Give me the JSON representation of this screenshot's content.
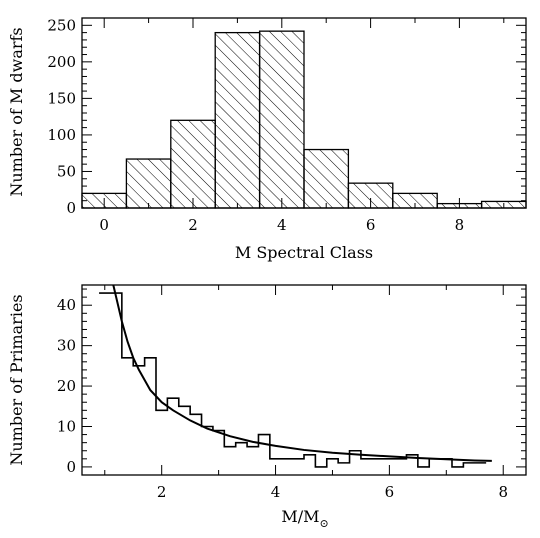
{
  "chart_data": [
    {
      "type": "bar",
      "style": "hatched histogram",
      "xlabel": "M Spectral Class",
      "ylabel": "Number of M dwarfs",
      "xlim": [
        -0.5,
        9.5
      ],
      "ylim": [
        0,
        260
      ],
      "xticks": [
        0,
        2,
        4,
        6,
        8
      ],
      "yticks": [
        0,
        50,
        100,
        150,
        200,
        250
      ],
      "bins": [
        {
          "x0": -0.5,
          "x1": 0.5,
          "value": 20
        },
        {
          "x0": 0.5,
          "x1": 1.5,
          "value": 67
        },
        {
          "x0": 1.5,
          "x1": 2.5,
          "value": 120
        },
        {
          "x0": 2.5,
          "x1": 3.5,
          "value": 240
        },
        {
          "x0": 3.5,
          "x1": 4.5,
          "value": 242
        },
        {
          "x0": 4.5,
          "x1": 5.5,
          "value": 80
        },
        {
          "x0": 5.5,
          "x1": 6.5,
          "value": 34
        },
        {
          "x0": 6.5,
          "x1": 7.5,
          "value": 20
        },
        {
          "x0": 7.5,
          "x1": 8.5,
          "value": 6
        },
        {
          "x0": 8.5,
          "x1": 9.5,
          "value": 9
        }
      ]
    },
    {
      "type": "line",
      "style": "step histogram with fitted curve",
      "xlabel": "M/M",
      "xlabel_sub": "⊙",
      "ylabel": "Number of Primaries",
      "xlim": [
        0.6,
        8.4
      ],
      "ylim": [
        -2,
        45
      ],
      "xticks": [
        2,
        4,
        6,
        8
      ],
      "yticks": [
        0,
        10,
        20,
        30,
        40
      ],
      "series": [
        {
          "kind": "histogram",
          "bin_width": 0.2,
          "bin_starts": [
            0.9,
            1.1,
            1.3,
            1.5,
            1.7,
            1.9,
            2.1,
            2.3,
            2.5,
            2.7,
            2.9,
            3.1,
            3.3,
            3.5,
            3.7,
            3.9,
            4.1,
            4.3,
            4.5,
            4.7,
            4.9,
            5.1,
            5.3,
            5.5,
            5.7,
            5.9,
            6.1,
            6.3,
            6.5,
            6.7,
            6.9,
            7.1,
            7.3,
            7.5
          ],
          "values": [
            43,
            43,
            27,
            25,
            27,
            14,
            17,
            15,
            13,
            10,
            9,
            5,
            6,
            5,
            8,
            2,
            2,
            2,
            3,
            0,
            2,
            1,
            4,
            2,
            2,
            2,
            2,
            3,
            0,
            2,
            2,
            0,
            1,
            1
          ]
        },
        {
          "kind": "curve",
          "x": [
            1.15,
            1.2,
            1.3,
            1.4,
            1.5,
            1.6,
            1.8,
            2.0,
            2.2,
            2.5,
            2.8,
            3.2,
            3.6,
            4.0,
            4.5,
            5.0,
            5.5,
            6.0,
            6.5,
            7.0,
            7.5,
            7.8
          ],
          "y": [
            45,
            42,
            36,
            31,
            27,
            24,
            19,
            16,
            14,
            11.5,
            9.5,
            7.6,
            6.2,
            5.2,
            4.2,
            3.5,
            3.0,
            2.6,
            2.2,
            1.9,
            1.6,
            1.5
          ]
        }
      ]
    }
  ]
}
